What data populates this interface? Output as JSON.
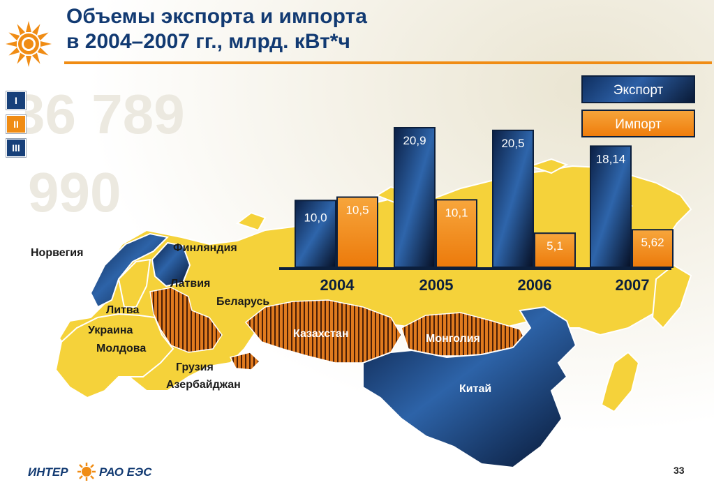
{
  "title": {
    "line1": "Объемы экспорта и импорта",
    "line2": "в 2004–2007 гг., млрд. кВт*ч"
  },
  "nav": [
    "I",
    "II",
    "III"
  ],
  "legend": {
    "export": "Экспорт",
    "import": "Импорт"
  },
  "countries": {
    "norway": "Норвегия",
    "finland": "Финляндия",
    "latvia": "Латвия",
    "belarus": "Беларусь",
    "lithuania": "Литва",
    "ukraine": "Украина",
    "moldova": "Молдова",
    "georgia": "Грузия",
    "azerbaijan": "Азербайджан",
    "kazakhstan": "Казахстан",
    "mongolia": "Монголия",
    "china": "Китай"
  },
  "footer": {
    "brand_left": "ИНТЕР",
    "brand_right": "РАО ЕЭС",
    "page": "33"
  },
  "colors": {
    "export": "#0f2f60",
    "import": "#ef7d0c",
    "accent": "#f08c14",
    "title": "#123a72",
    "map": "#f5d23a"
  },
  "chart_data": {
    "type": "bar",
    "categories": [
      "2004",
      "2005",
      "2006",
      "2007"
    ],
    "series": [
      {
        "name": "Экспорт",
        "values": [
          10.0,
          20.9,
          20.5,
          18.14
        ],
        "labels": [
          "10,0",
          "20,9",
          "20,5",
          "18,14"
        ]
      },
      {
        "name": "Импорт",
        "values": [
          10.5,
          10.1,
          5.1,
          5.62
        ],
        "labels": [
          "10,5",
          "10,1",
          "5,1",
          "5,62"
        ]
      }
    ],
    "ylim": [
      0,
      20.9
    ],
    "legend": "top-right"
  }
}
